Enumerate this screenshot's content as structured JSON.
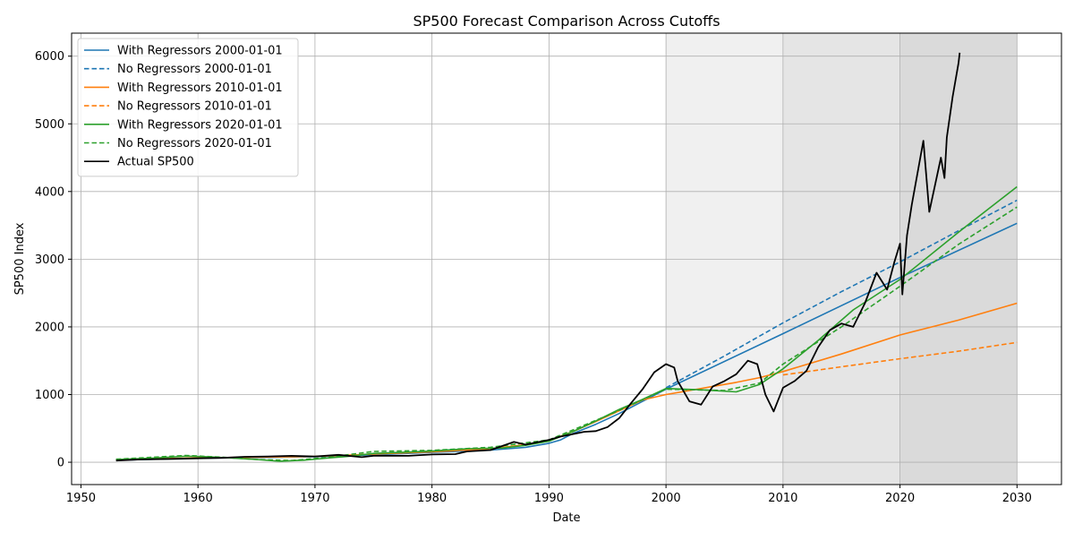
{
  "chart_data": {
    "type": "line",
    "title": "SP500 Forecast Comparison Across Cutoffs",
    "xlabel": "Date",
    "ylabel": "SP500 Index",
    "xlim": [
      1949.2,
      2033.8
    ],
    "ylim": [
      -330,
      6340
    ],
    "x_ticks": [
      1950,
      1960,
      1970,
      1980,
      1990,
      2000,
      2010,
      2020,
      2030
    ],
    "y_ticks": [
      0,
      1000,
      2000,
      3000,
      4000,
      5000,
      6000
    ],
    "grid": true,
    "legend_position": "top-left",
    "shaded_regions": [
      {
        "start": 2000,
        "end": 2030,
        "color": "#f0f0f0"
      },
      {
        "start": 2010,
        "end": 2030,
        "color": "#e5e5e5"
      },
      {
        "start": 2020,
        "end": 2030,
        "color": "#dadada"
      }
    ],
    "series": [
      {
        "name": "With Regressors 2000-01-01",
        "color": "#1f77b4",
        "style": "solid",
        "points": [
          [
            1953,
            30
          ],
          [
            1960,
            60
          ],
          [
            1965,
            70
          ],
          [
            1970,
            80
          ],
          [
            1975,
            110
          ],
          [
            1980,
            145
          ],
          [
            1985,
            180
          ],
          [
            1988,
            220
          ],
          [
            1990,
            280
          ],
          [
            1991,
            330
          ],
          [
            1992,
            420
          ],
          [
            1994,
            560
          ],
          [
            1996,
            720
          ],
          [
            1998,
            900
          ],
          [
            2000,
            1080
          ],
          [
            2010,
            1900
          ],
          [
            2020,
            2730
          ],
          [
            2030,
            3530
          ]
        ]
      },
      {
        "name": "No Regressors 2000-01-01",
        "color": "#1f77b4",
        "style": "dashed",
        "points": [
          [
            2000,
            1100
          ],
          [
            2005,
            1570
          ],
          [
            2010,
            2060
          ],
          [
            2015,
            2520
          ],
          [
            2020,
            2960
          ],
          [
            2025,
            3420
          ],
          [
            2030,
            3870
          ]
        ]
      },
      {
        "name": "With Regressors 2010-01-01",
        "color": "#ff7f0e",
        "style": "solid",
        "points": [
          [
            1953,
            35
          ],
          [
            1960,
            65
          ],
          [
            1965,
            75
          ],
          [
            1970,
            85
          ],
          [
            1975,
            120
          ],
          [
            1980,
            155
          ],
          [
            1985,
            200
          ],
          [
            1988,
            260
          ],
          [
            1990,
            320
          ],
          [
            1992,
            450
          ],
          [
            1994,
            600
          ],
          [
            1996,
            760
          ],
          [
            1998,
            920
          ],
          [
            2000,
            1000
          ],
          [
            2002,
            1060
          ],
          [
            2004,
            1120
          ],
          [
            2006,
            1180
          ],
          [
            2008,
            1250
          ],
          [
            2010,
            1340
          ],
          [
            2015,
            1600
          ],
          [
            2020,
            1880
          ],
          [
            2025,
            2100
          ],
          [
            2030,
            2350
          ]
        ]
      },
      {
        "name": "No Regressors 2010-01-01",
        "color": "#ff7f0e",
        "style": "dashed",
        "points": [
          [
            2010,
            1290
          ],
          [
            2015,
            1410
          ],
          [
            2020,
            1530
          ],
          [
            2025,
            1640
          ],
          [
            2030,
            1770
          ]
        ]
      },
      {
        "name": "With Regressors 2020-01-01",
        "color": "#2ca02c",
        "style": "solid",
        "points": [
          [
            1953,
            40
          ],
          [
            1956,
            60
          ],
          [
            1959,
            90
          ],
          [
            1961,
            80
          ],
          [
            1963,
            60
          ],
          [
            1965,
            40
          ],
          [
            1967,
            15
          ],
          [
            1969,
            30
          ],
          [
            1971,
            60
          ],
          [
            1973,
            90
          ],
          [
            1975,
            130
          ],
          [
            1978,
            150
          ],
          [
            1980,
            165
          ],
          [
            1983,
            200
          ],
          [
            1986,
            210
          ],
          [
            1988,
            250
          ],
          [
            1990,
            310
          ],
          [
            1992,
            450
          ],
          [
            1994,
            610
          ],
          [
            1996,
            780
          ],
          [
            1998,
            930
          ],
          [
            2000,
            1090
          ],
          [
            2003,
            1070
          ],
          [
            2006,
            1040
          ],
          [
            2008,
            1150
          ],
          [
            2010,
            1380
          ],
          [
            2013,
            1800
          ],
          [
            2016,
            2250
          ],
          [
            2020,
            2700
          ],
          [
            2025,
            3400
          ],
          [
            2030,
            4070
          ]
        ]
      },
      {
        "name": "No Regressors 2020-01-01",
        "color": "#2ca02c",
        "style": "dashed",
        "points": [
          [
            1953,
            45
          ],
          [
            1959,
            100
          ],
          [
            1962,
            75
          ],
          [
            1965,
            40
          ],
          [
            1968,
            25
          ],
          [
            1971,
            70
          ],
          [
            1975,
            160
          ],
          [
            1980,
            175
          ],
          [
            1985,
            220
          ],
          [
            1990,
            330
          ],
          [
            1995,
            690
          ],
          [
            2000,
            1080
          ],
          [
            2005,
            1060
          ],
          [
            2008,
            1170
          ],
          [
            2010,
            1450
          ],
          [
            2015,
            2000
          ],
          [
            2020,
            2600
          ],
          [
            2025,
            3220
          ],
          [
            2030,
            3770
          ]
        ]
      },
      {
        "name": "Actual SP500",
        "color": "#000000",
        "style": "solid",
        "points": [
          [
            1953,
            25
          ],
          [
            1955,
            40
          ],
          [
            1958,
            50
          ],
          [
            1960,
            58
          ],
          [
            1962,
            65
          ],
          [
            1964,
            80
          ],
          [
            1966,
            85
          ],
          [
            1968,
            95
          ],
          [
            1970,
            85
          ],
          [
            1972,
            110
          ],
          [
            1974,
            75
          ],
          [
            1975,
            95
          ],
          [
            1978,
            95
          ],
          [
            1980,
            115
          ],
          [
            1982,
            120
          ],
          [
            1983,
            160
          ],
          [
            1985,
            180
          ],
          [
            1987,
            300
          ],
          [
            1988,
            260
          ],
          [
            1990,
            330
          ],
          [
            1991,
            380
          ],
          [
            1993,
            450
          ],
          [
            1994,
            460
          ],
          [
            1995,
            520
          ],
          [
            1996,
            650
          ],
          [
            1997,
            870
          ],
          [
            1998,
            1080
          ],
          [
            1999,
            1330
          ],
          [
            2000,
            1450
          ],
          [
            2000.7,
            1400
          ],
          [
            2001,
            1200
          ],
          [
            2002,
            900
          ],
          [
            2003,
            850
          ],
          [
            2004,
            1120
          ],
          [
            2005,
            1200
          ],
          [
            2006,
            1300
          ],
          [
            2007,
            1500
          ],
          [
            2007.8,
            1450
          ],
          [
            2008.5,
            1000
          ],
          [
            2009.2,
            750
          ],
          [
            2010,
            1100
          ],
          [
            2011,
            1200
          ],
          [
            2012,
            1350
          ],
          [
            2013,
            1700
          ],
          [
            2014,
            1950
          ],
          [
            2015,
            2050
          ],
          [
            2016,
            2000
          ],
          [
            2017,
            2350
          ],
          [
            2018,
            2800
          ],
          [
            2018.9,
            2550
          ],
          [
            2019.5,
            2950
          ],
          [
            2020,
            3230
          ],
          [
            2020.2,
            2480
          ],
          [
            2020.6,
            3350
          ],
          [
            2021,
            3800
          ],
          [
            2022,
            4750
          ],
          [
            2022.5,
            3700
          ],
          [
            2023,
            4100
          ],
          [
            2023.5,
            4500
          ],
          [
            2023.8,
            4200
          ],
          [
            2024,
            4800
          ],
          [
            2024.5,
            5400
          ],
          [
            2025,
            5900
          ],
          [
            2025.1,
            6050
          ]
        ]
      }
    ]
  }
}
